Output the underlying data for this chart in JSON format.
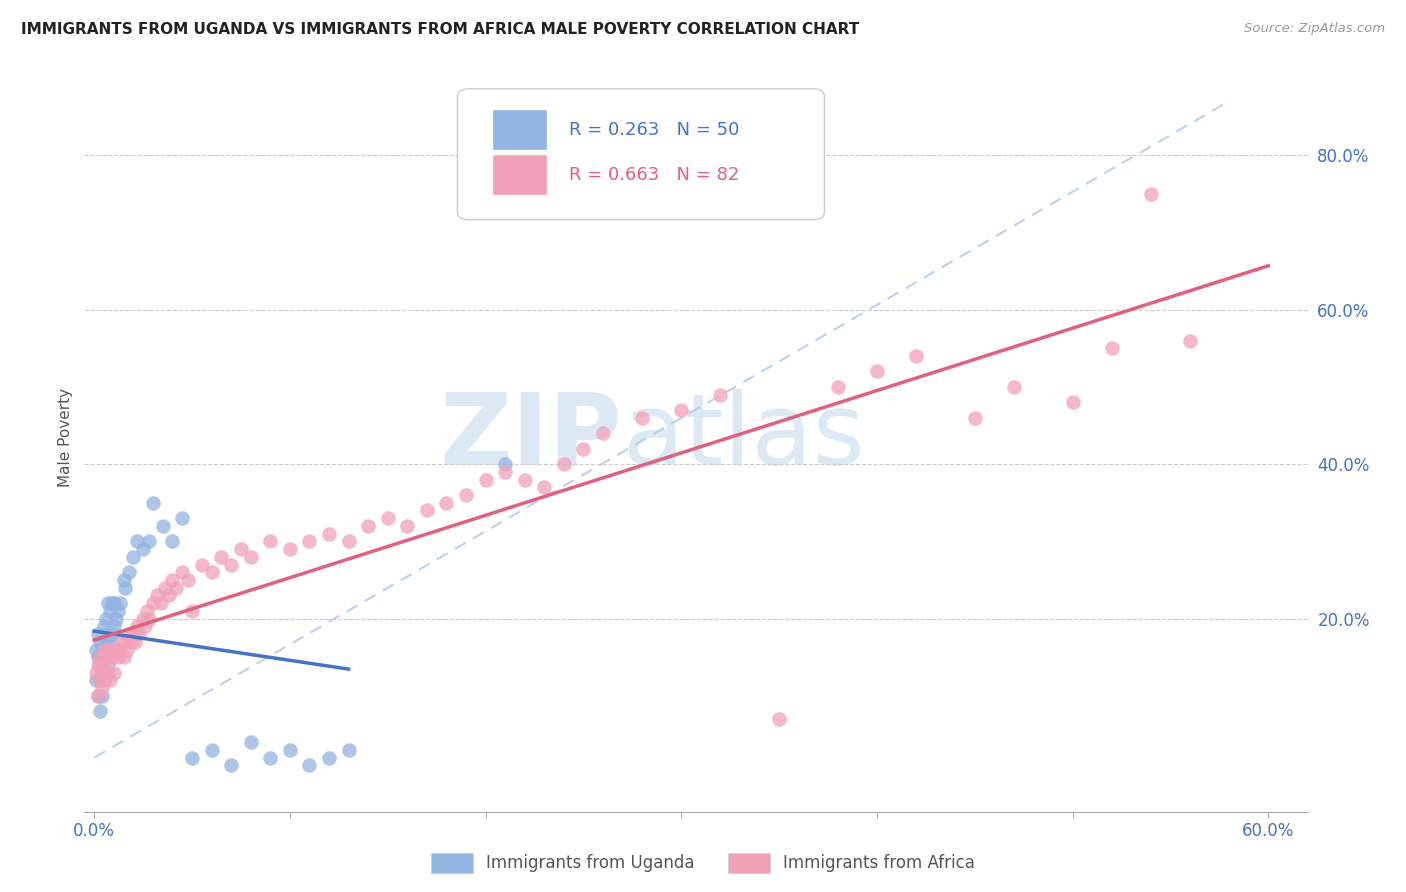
{
  "title": "IMMIGRANTS FROM UGANDA VS IMMIGRANTS FROM AFRICA MALE POVERTY CORRELATION CHART",
  "source": "Source: ZipAtlas.com",
  "ylabel": "Male Poverty",
  "xlim": [
    -0.005,
    0.62
  ],
  "ylim": [
    -0.05,
    0.92
  ],
  "x_ticks": [
    0.0,
    0.1,
    0.2,
    0.3,
    0.4,
    0.5,
    0.6
  ],
  "x_tick_labels": [
    "0.0%",
    "",
    "",
    "",
    "",
    "",
    "60.0%"
  ],
  "y_ticks_right": [
    0.2,
    0.4,
    0.6,
    0.8
  ],
  "y_tick_labels_right": [
    "20.0%",
    "40.0%",
    "60.0%",
    "80.0%"
  ],
  "uganda_R": 0.263,
  "uganda_N": 50,
  "africa_R": 0.663,
  "africa_N": 82,
  "uganda_color": "#92b4e1",
  "africa_color": "#f2a0b8",
  "uganda_line_color": "#4472c4",
  "africa_line_color": "#e06080",
  "dashed_line_color": "#b8cce4",
  "uganda_x": [
    0.001,
    0.001,
    0.002,
    0.002,
    0.002,
    0.003,
    0.003,
    0.003,
    0.003,
    0.004,
    0.004,
    0.004,
    0.005,
    0.005,
    0.005,
    0.006,
    0.006,
    0.007,
    0.007,
    0.007,
    0.008,
    0.008,
    0.009,
    0.009,
    0.01,
    0.01,
    0.011,
    0.012,
    0.013,
    0.015,
    0.016,
    0.018,
    0.02,
    0.022,
    0.025,
    0.028,
    0.03,
    0.035,
    0.04,
    0.045,
    0.05,
    0.06,
    0.07,
    0.08,
    0.09,
    0.1,
    0.11,
    0.12,
    0.13,
    0.21
  ],
  "uganda_y": [
    0.16,
    0.12,
    0.18,
    0.15,
    0.1,
    0.17,
    0.14,
    0.12,
    0.08,
    0.16,
    0.13,
    0.1,
    0.19,
    0.15,
    0.12,
    0.2,
    0.17,
    0.22,
    0.18,
    0.14,
    0.21,
    0.17,
    0.22,
    0.18,
    0.22,
    0.19,
    0.2,
    0.21,
    0.22,
    0.25,
    0.24,
    0.26,
    0.28,
    0.3,
    0.29,
    0.3,
    0.35,
    0.32,
    0.3,
    0.33,
    0.02,
    0.03,
    0.01,
    0.04,
    0.02,
    0.03,
    0.01,
    0.02,
    0.03,
    0.4
  ],
  "africa_x": [
    0.001,
    0.002,
    0.002,
    0.003,
    0.003,
    0.004,
    0.004,
    0.005,
    0.005,
    0.006,
    0.006,
    0.007,
    0.007,
    0.008,
    0.008,
    0.009,
    0.01,
    0.01,
    0.011,
    0.012,
    0.013,
    0.014,
    0.015,
    0.016,
    0.017,
    0.018,
    0.019,
    0.02,
    0.021,
    0.022,
    0.023,
    0.025,
    0.026,
    0.027,
    0.028,
    0.03,
    0.032,
    0.034,
    0.036,
    0.038,
    0.04,
    0.042,
    0.045,
    0.048,
    0.05,
    0.055,
    0.06,
    0.065,
    0.07,
    0.075,
    0.08,
    0.09,
    0.1,
    0.11,
    0.12,
    0.13,
    0.14,
    0.15,
    0.16,
    0.17,
    0.18,
    0.19,
    0.2,
    0.21,
    0.22,
    0.23,
    0.24,
    0.25,
    0.26,
    0.28,
    0.3,
    0.32,
    0.35,
    0.38,
    0.4,
    0.42,
    0.45,
    0.47,
    0.5,
    0.52,
    0.54,
    0.56
  ],
  "africa_y": [
    0.13,
    0.14,
    0.1,
    0.15,
    0.12,
    0.14,
    0.11,
    0.16,
    0.12,
    0.15,
    0.13,
    0.16,
    0.13,
    0.15,
    0.12,
    0.16,
    0.15,
    0.13,
    0.16,
    0.15,
    0.16,
    0.17,
    0.15,
    0.17,
    0.16,
    0.18,
    0.17,
    0.18,
    0.17,
    0.19,
    0.18,
    0.2,
    0.19,
    0.21,
    0.2,
    0.22,
    0.23,
    0.22,
    0.24,
    0.23,
    0.25,
    0.24,
    0.26,
    0.25,
    0.21,
    0.27,
    0.26,
    0.28,
    0.27,
    0.29,
    0.28,
    0.3,
    0.29,
    0.3,
    0.31,
    0.3,
    0.32,
    0.33,
    0.32,
    0.34,
    0.35,
    0.36,
    0.38,
    0.39,
    0.38,
    0.37,
    0.4,
    0.42,
    0.44,
    0.46,
    0.47,
    0.49,
    0.07,
    0.5,
    0.52,
    0.54,
    0.46,
    0.5,
    0.48,
    0.55,
    0.75,
    0.56
  ]
}
